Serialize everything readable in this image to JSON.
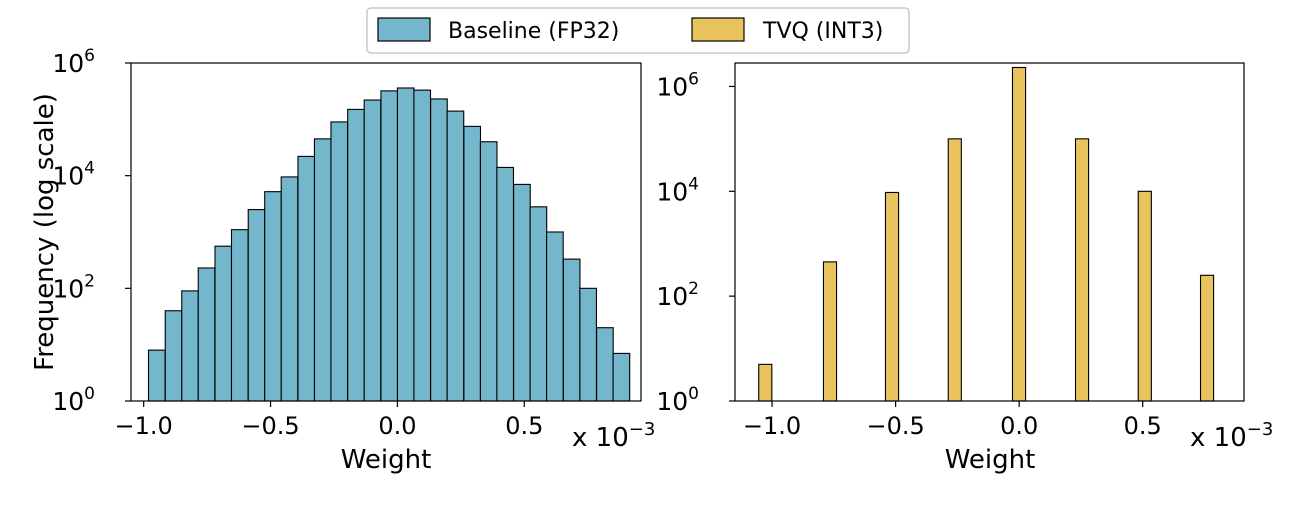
{
  "legend": {
    "entries": [
      {
        "label": "Baseline (FP32)",
        "color": "#74b6cc"
      },
      {
        "label": "TVQ (INT3)",
        "color": "#e9c45e"
      }
    ]
  },
  "colors": {
    "baseline": "#74b6cc",
    "tvq": "#e9c45e",
    "edge": "#000000"
  },
  "chart_data": [
    {
      "type": "bar",
      "title": "",
      "xlabel": "Weight",
      "ylabel": "Frequency (log scale)",
      "x_multiplier_label": "x 10",
      "x_multiplier_exponent": "−3",
      "y_scale": "log",
      "xlim": [
        -1.05,
        0.96
      ],
      "ylim": [
        1,
        1000000
      ],
      "x_ticks": [
        {
          "value": -1.0,
          "label": "−1.0"
        },
        {
          "value": -0.5,
          "label": "−0.5"
        },
        {
          "value": 0.0,
          "label": "0.0"
        },
        {
          "value": 0.5,
          "label": "0.5"
        }
      ],
      "y_ticks": [
        {
          "value": 1,
          "base": "10",
          "exp": "0"
        },
        {
          "value": 100,
          "base": "10",
          "exp": "2"
        },
        {
          "value": 10000,
          "base": "10",
          "exp": "4"
        },
        {
          "value": 1000000,
          "base": "10",
          "exp": "6"
        }
      ],
      "series": [
        {
          "color": "#74b6cc",
          "bin_width": 0.0654,
          "bins": [
            -0.981,
            -0.915,
            -0.85,
            -0.785,
            -0.719,
            -0.654,
            -0.588,
            -0.523,
            -0.458,
            -0.392,
            -0.327,
            -0.262,
            -0.196,
            -0.131,
            -0.065,
            0.0,
            0.065,
            0.131,
            0.196,
            0.262,
            0.327,
            0.392,
            0.458,
            0.523,
            0.588,
            0.654,
            0.719,
            0.785,
            0.85
          ],
          "values": [
            8,
            40,
            90,
            230,
            560,
            1100,
            2500,
            5200,
            9500,
            22000,
            45000,
            90000,
            150000,
            220000,
            320000,
            360000,
            330000,
            230000,
            140000,
            75000,
            40000,
            14000,
            7000,
            2800,
            1000,
            330,
            100,
            20,
            7
          ]
        }
      ]
    },
    {
      "type": "bar",
      "title": "",
      "xlabel": "Weight",
      "ylabel": "",
      "x_multiplier_label": "x 10",
      "x_multiplier_exponent": "−3",
      "y_scale": "log",
      "xlim": [
        -1.15,
        0.91
      ],
      "ylim": [
        1,
        2800000
      ],
      "x_ticks": [
        {
          "value": -1.0,
          "label": "−1.0"
        },
        {
          "value": -0.5,
          "label": "−0.5"
        },
        {
          "value": 0.0,
          "label": "0.0"
        },
        {
          "value": 0.5,
          "label": "0.5"
        }
      ],
      "y_ticks": [
        {
          "value": 1,
          "base": "10",
          "exp": "0"
        },
        {
          "value": 100,
          "base": "10",
          "exp": "2"
        },
        {
          "value": 10000,
          "base": "10",
          "exp": "4"
        },
        {
          "value": 1000000,
          "base": "10",
          "exp": "6"
        }
      ],
      "series": [
        {
          "color": "#e9c45e",
          "bin_width": 0.053,
          "bins": [
            -1.054,
            -0.792,
            -0.541,
            -0.287,
            -0.027,
            0.228,
            0.482,
            0.734
          ],
          "values": [
            5,
            450,
            9500,
            100000,
            2300000,
            100000,
            10000,
            250
          ]
        }
      ]
    }
  ]
}
